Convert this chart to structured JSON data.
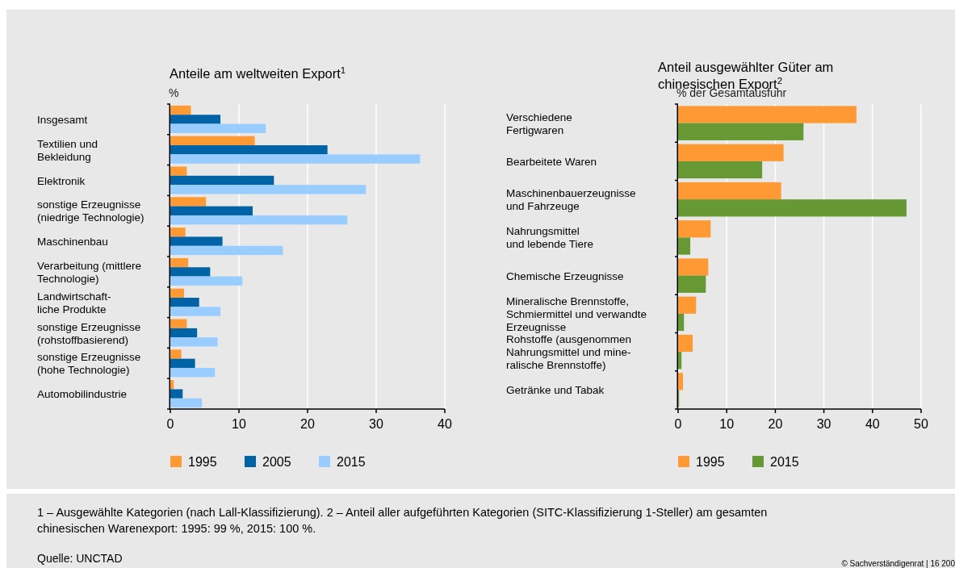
{
  "chart_data": [
    {
      "type": "bar",
      "orientation": "horizontal",
      "title": "Anteile am weltweiten Export$^{1}$",
      "xlabel": "%",
      "categories": [
        "Insgesamt",
        "Textilien und\nBekleidung",
        "Elektronik",
        "sonstige Erzeugnisse\n(niedrige Technologie)",
        "Maschinenbau",
        "Verarbeitung (mittlere\nTechnologie)",
        "Landwirtschaft-\nliche Produkte",
        "sonstige Erzeugnisse\n(rohstoffbasierend)",
        "sonstige Erzeugnisse\n(hohe Technologie)",
        "Automobilindustrie"
      ],
      "series": [
        {
          "name": "1995",
          "color": "#ff9933",
          "values": [
            3.0,
            12.3,
            2.4,
            5.2,
            2.2,
            2.6,
            2.0,
            2.4,
            1.6,
            0.5
          ]
        },
        {
          "name": "2005",
          "color": "#0063a6",
          "values": [
            7.3,
            22.9,
            15.1,
            12.0,
            7.6,
            5.8,
            4.2,
            3.9,
            3.6,
            1.8
          ]
        },
        {
          "name": "2015",
          "color": "#99ccff",
          "values": [
            13.9,
            36.4,
            28.5,
            25.8,
            16.4,
            10.5,
            7.3,
            6.9,
            6.5,
            4.6
          ]
        }
      ],
      "xlim": [
        0,
        40
      ],
      "xticks": [
        0,
        10,
        20,
        30,
        40
      ],
      "grid": "x",
      "legend": "bottom",
      "annotations": [
        "1 – Ausgewählte Kategorien (nach Lall-Klassifizierung).  2 – Anteil aller aufgeführten Kategorien (SITC-Klassifizierung 1-Steller) am gesamten\nchinesischen Warenexport: 1995: 99 %, 2015: 100 %.",
        "Quelle: UNCTAD",
        "© Sachverständigenrat | 16 200"
      ]
    },
    {
      "type": "bar",
      "orientation": "horizontal",
      "title": "Anteil ausgewählter Güter am\nchinesischen Export$^{2}$",
      "xlabel": "% der Gesamtausfuhr",
      "categories": [
        "Verschiedene\nFertigwaren",
        "Bearbeitete Waren",
        "Maschinenbauerzeugnisse\nund Fahrzeuge",
        "Nahrungsmittel\nund lebende Tiere",
        "Chemische Erzeugnisse",
        "Mineralische Brennstoffe,\nSchmiermittel und verwandte\nErzeugnisse",
        "Rohstoffe (ausgenommen\nNahrungsmittel und mine-\nralische Brennstoffe)",
        "Getränke und Tabak"
      ],
      "series": [
        {
          "name": "1995",
          "color": "#ff9933",
          "values": [
            36.7,
            21.7,
            21.2,
            6.7,
            6.2,
            3.7,
            3.0,
            1.0
          ]
        },
        {
          "name": "2015",
          "color": "#669933",
          "values": [
            25.8,
            17.3,
            47.0,
            2.5,
            5.7,
            1.2,
            0.7,
            0.2
          ]
        }
      ],
      "xlim": [
        0,
        50
      ],
      "xticks": [
        0,
        10,
        20,
        30,
        40,
        50
      ],
      "grid": "x",
      "legend": "bottom"
    }
  ]
}
